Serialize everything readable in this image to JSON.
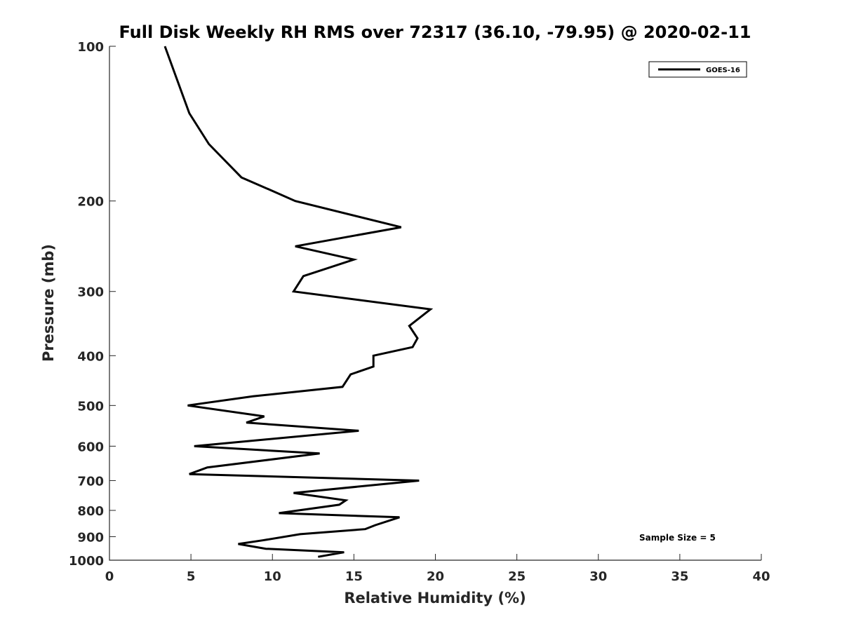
{
  "chart_data": {
    "type": "line",
    "title": "Full Disk Weekly RH RMS over 72317 (36.10, -79.95) @ 2020-02-11",
    "xlabel": "Relative Humidity (%)",
    "ylabel": "Pressure (mb)",
    "xlim": [
      0,
      40
    ],
    "ylim": [
      100,
      1000
    ],
    "y_scale": "log",
    "y_reversed": true,
    "xticks": [
      0,
      5,
      10,
      15,
      20,
      25,
      30,
      35,
      40
    ],
    "yticks": [
      100,
      200,
      300,
      400,
      500,
      600,
      700,
      800,
      900,
      1000
    ],
    "grid": false,
    "legend": {
      "placement": "top-right",
      "entries": [
        "GOES-16"
      ]
    },
    "annotation": "Sample Size = 5",
    "series": [
      {
        "name": "GOES-16",
        "color": "#000000",
        "points": [
          [
            3.4,
            100
          ],
          [
            4.1,
            115
          ],
          [
            4.9,
            135
          ],
          [
            6.1,
            155
          ],
          [
            8.1,
            180
          ],
          [
            9.8,
            190
          ],
          [
            11.4,
            200
          ],
          [
            17.9,
            225
          ],
          [
            11.4,
            245
          ],
          [
            15.0,
            260
          ],
          [
            11.9,
            280
          ],
          [
            11.3,
            300
          ],
          [
            19.7,
            325
          ],
          [
            18.4,
            350
          ],
          [
            18.9,
            370
          ],
          [
            18.6,
            385
          ],
          [
            16.2,
            400
          ],
          [
            16.2,
            420
          ],
          [
            14.8,
            435
          ],
          [
            14.3,
            460
          ],
          [
            8.8,
            480
          ],
          [
            4.8,
            500
          ],
          [
            9.5,
            525
          ],
          [
            8.4,
            540
          ],
          [
            15.3,
            560
          ],
          [
            5.2,
            600
          ],
          [
            12.9,
            620
          ],
          [
            6.0,
            660
          ],
          [
            4.9,
            680
          ],
          [
            19.0,
            700
          ],
          [
            11.3,
            740
          ],
          [
            14.5,
            765
          ],
          [
            14.1,
            780
          ],
          [
            10.4,
            810
          ],
          [
            17.8,
            825
          ],
          [
            16.3,
            855
          ],
          [
            15.7,
            870
          ],
          [
            11.7,
            890
          ],
          [
            9.4,
            915
          ],
          [
            7.9,
            930
          ],
          [
            9.6,
            950
          ],
          [
            14.4,
            965
          ],
          [
            12.8,
            985
          ]
        ]
      }
    ]
  }
}
